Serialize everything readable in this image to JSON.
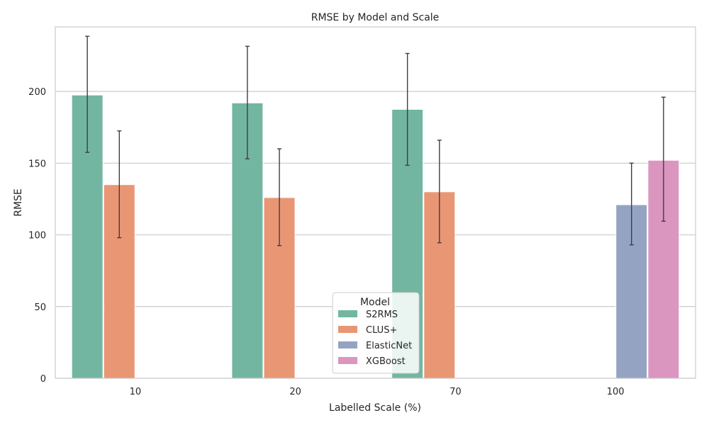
{
  "chart_data": {
    "type": "bar",
    "title": "RMSE by Model and Scale",
    "xlabel": "Labelled Scale (%)",
    "ylabel": "RMSE",
    "categories": [
      "10",
      "20",
      "70",
      "100"
    ],
    "ylim": [
      0,
      245
    ],
    "yticks": [
      0,
      50,
      100,
      150,
      200
    ],
    "grid": "horizontal",
    "legend_title": "Model",
    "legend_position": "lower-center",
    "series": [
      {
        "name": "S2RMS",
        "color": "#72b6a1",
        "values": [
          197.5,
          192,
          187.5,
          null
        ],
        "err_low": [
          157.5,
          153,
          148.5,
          null
        ],
        "err_high": [
          238.5,
          231.5,
          226.5,
          null
        ]
      },
      {
        "name": "CLUS+",
        "color": "#e99675",
        "values": [
          135,
          126,
          130,
          null
        ],
        "err_low": [
          98,
          92.5,
          94.5,
          null
        ],
        "err_high": [
          172.5,
          160,
          166,
          null
        ]
      },
      {
        "name": "ElasticNet",
        "color": "#95a3c3",
        "values": [
          null,
          null,
          null,
          121
        ],
        "err_low": [
          null,
          null,
          null,
          93
        ],
        "err_high": [
          null,
          null,
          null,
          150
        ]
      },
      {
        "name": "XGBoost",
        "color": "#db96c0",
        "values": [
          null,
          null,
          null,
          152
        ],
        "err_low": [
          null,
          null,
          null,
          109.5
        ],
        "err_high": [
          null,
          null,
          null,
          196
        ]
      }
    ]
  }
}
